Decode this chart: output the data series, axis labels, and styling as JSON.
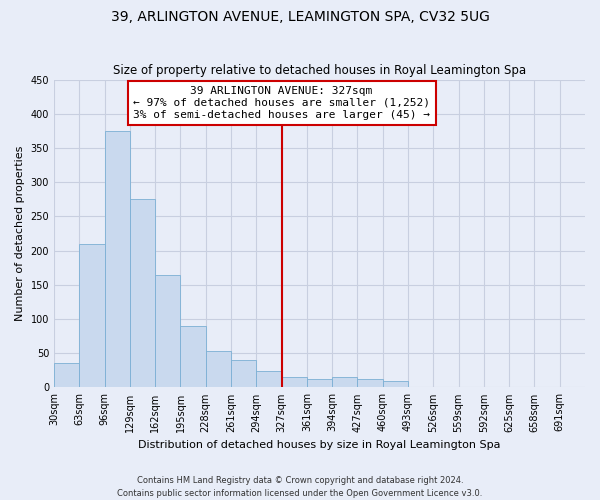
{
  "title": "39, ARLINGTON AVENUE, LEAMINGTON SPA, CV32 5UG",
  "subtitle": "Size of property relative to detached houses in Royal Leamington Spa",
  "xlabel": "Distribution of detached houses by size in Royal Leamington Spa",
  "ylabel": "Number of detached properties",
  "bin_labels": [
    "30sqm",
    "63sqm",
    "96sqm",
    "129sqm",
    "162sqm",
    "195sqm",
    "228sqm",
    "261sqm",
    "294sqm",
    "327sqm",
    "361sqm",
    "394sqm",
    "427sqm",
    "460sqm",
    "493sqm",
    "526sqm",
    "559sqm",
    "592sqm",
    "625sqm",
    "658sqm",
    "691sqm"
  ],
  "counts": [
    35,
    210,
    375,
    275,
    165,
    90,
    53,
    40,
    24,
    15,
    12,
    15,
    12,
    10,
    0,
    0,
    1,
    0,
    0,
    0,
    1
  ],
  "bar_color": "#c9d9ee",
  "bar_edge_color": "#7bafd4",
  "vline_color": "#cc0000",
  "annotation_title": "39 ARLINGTON AVENUE: 327sqm",
  "annotation_line1": "← 97% of detached houses are smaller (1,252)",
  "annotation_line2": "3% of semi-detached houses are larger (45) →",
  "annotation_box_color": "#ffffff",
  "annotation_box_edge": "#cc0000",
  "ylim": [
    0,
    450
  ],
  "yticks": [
    0,
    50,
    100,
    150,
    200,
    250,
    300,
    350,
    400,
    450
  ],
  "footer1": "Contains HM Land Registry data © Crown copyright and database right 2024.",
  "footer2": "Contains public sector information licensed under the Open Government Licence v3.0.",
  "bg_color": "#e8edf8",
  "plot_bg_color": "#e8edf8",
  "grid_color": "#c8cfe0",
  "title_fontsize": 10,
  "subtitle_fontsize": 8.5,
  "axis_label_fontsize": 8,
  "tick_fontsize": 7,
  "annotation_fontsize": 8,
  "footer_fontsize": 6
}
